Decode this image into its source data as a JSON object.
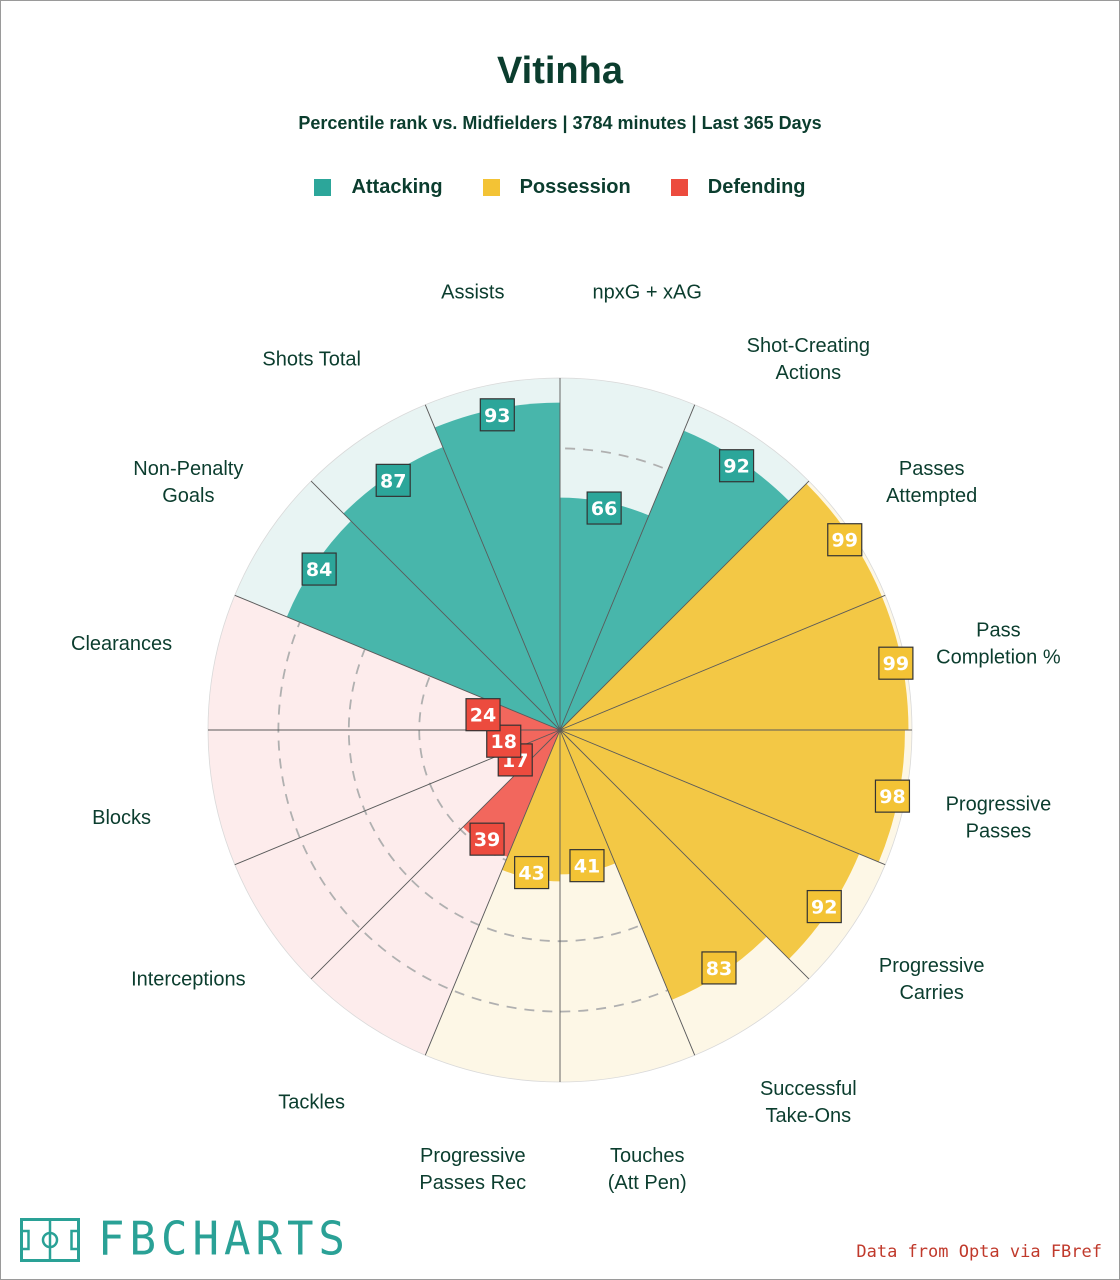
{
  "chart_data": {
    "type": "polar-bar",
    "title": "Vitinha",
    "subtitle": "Percentile rank vs. Midfielders | 3784 minutes | Last 365 Days",
    "range": [
      0,
      100
    ],
    "legend_placement": "top-center",
    "groups": [
      {
        "name": "Attacking",
        "color": "#2ca69a",
        "bar_color": "#48b6ab",
        "bg_color": "#e8f4f3"
      },
      {
        "name": "Possession",
        "color": "#f3c335",
        "bar_color": "#f3c845",
        "bg_color": "#fdf7e6"
      },
      {
        "name": "Defending",
        "color": "#ec4b3e",
        "bar_color": "#f2675d",
        "bg_color": "#fdecec"
      }
    ],
    "metrics": [
      {
        "label": "npxG + xAG",
        "group": "Attacking",
        "value": 66
      },
      {
        "label": "Shot-Creating Actions",
        "group": "Attacking",
        "value": 92
      },
      {
        "label": "Passes Attempted",
        "group": "Possession",
        "value": 99
      },
      {
        "label": "Pass Completion %",
        "group": "Possession",
        "value": 99
      },
      {
        "label": "Progressive Passes",
        "group": "Possession",
        "value": 98
      },
      {
        "label": "Progressive Carries",
        "group": "Possession",
        "value": 92
      },
      {
        "label": "Successful Take-Ons",
        "group": "Possession",
        "value": 83
      },
      {
        "label": "Touches (Att Pen)",
        "group": "Possession",
        "value": 41
      },
      {
        "label": "Progressive Passes Rec",
        "group": "Possession",
        "value": 43
      },
      {
        "label": "Tackles",
        "group": "Defending",
        "value": 39
      },
      {
        "label": "Interceptions",
        "group": "Defending",
        "value": 17
      },
      {
        "label": "Blocks",
        "group": "Defending",
        "value": 18
      },
      {
        "label": "Clearances",
        "group": "Defending",
        "value": 24
      },
      {
        "label": "Non-Penalty Goals",
        "group": "Attacking",
        "value": 84
      },
      {
        "label": "Shots Total",
        "group": "Attacking",
        "value": 87
      },
      {
        "label": "Assists",
        "group": "Attacking",
        "value": 93
      }
    ]
  },
  "footer": {
    "brand": "FBCHARTS",
    "source": "Data from Opta via FBref"
  }
}
